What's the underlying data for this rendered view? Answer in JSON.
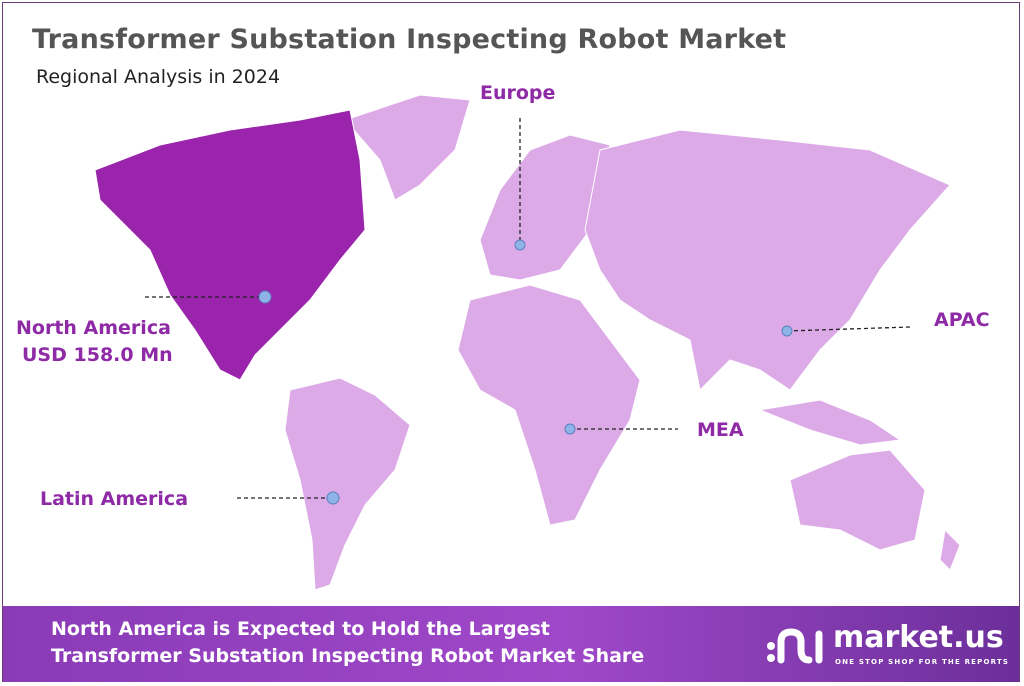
{
  "header": {
    "title": "Transformer Substation Inspecting Robot Market",
    "subtitle": "Regional Analysis in 2024"
  },
  "regions": [
    {
      "name": "North America",
      "value": "USD 158.0 Mn",
      "highlighted": true
    },
    {
      "name": "Europe"
    },
    {
      "name": "APAC"
    },
    {
      "name": "MEA"
    },
    {
      "name": "Latin America"
    }
  ],
  "colors": {
    "highlight_region": "#9a24ab",
    "other_regions": "#ddaae8",
    "label_text": "#8e2aa6",
    "marker": "#8fb3e6",
    "banner": "#9a44c4"
  },
  "footer": {
    "line1": "North America is Expected to Hold the Largest",
    "line2": "Transformer Substation Inspecting Robot Market Share"
  },
  "logo": {
    "name": "market.us",
    "tagline": "ONE STOP SHOP FOR THE REPORTS"
  }
}
